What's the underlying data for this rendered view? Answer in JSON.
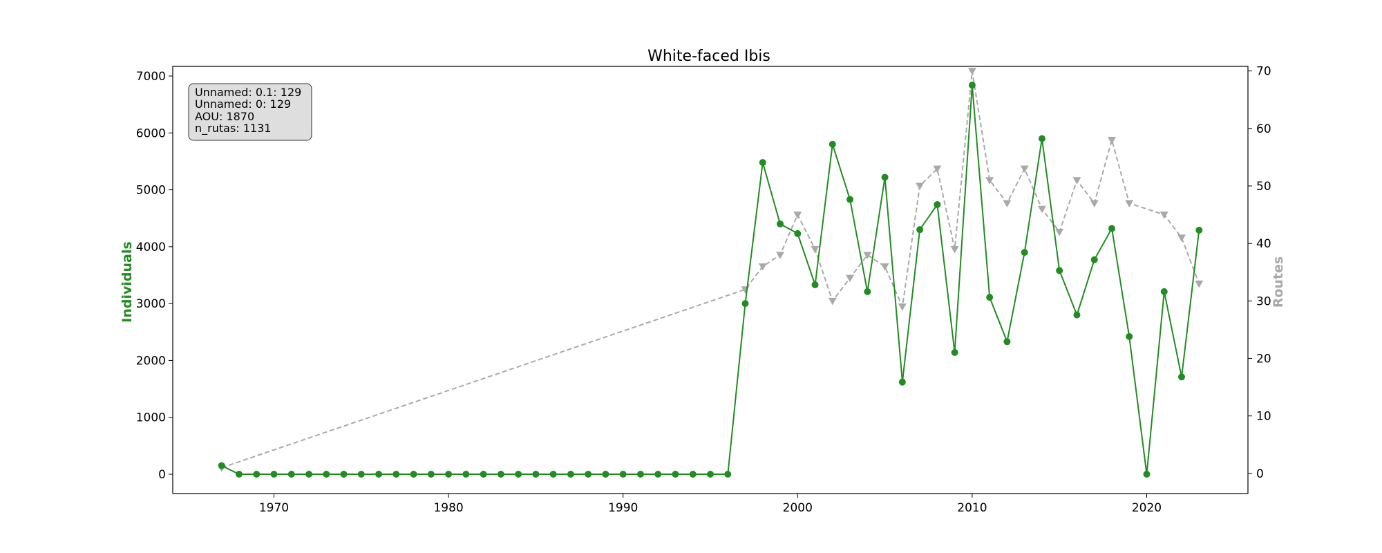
{
  "chart_data": {
    "type": "line",
    "title": "White-faced Ibis",
    "ylabel_left": "Individuals",
    "ylabel_right": "Routes",
    "xlim": [
      1964.2,
      2025.8
    ],
    "ylim_left": [
      -340,
      7170
    ],
    "ylim_right": [
      -3.5,
      70.8
    ],
    "x_ticks": [
      1970,
      1980,
      1990,
      2000,
      2010,
      2020
    ],
    "y_left_ticks": [
      0,
      1000,
      2000,
      3000,
      4000,
      5000,
      6000,
      7000
    ],
    "y_right_ticks": [
      0,
      10,
      20,
      30,
      40,
      50,
      60,
      70
    ],
    "grid": false,
    "info_box": [
      "Unnamed: 0.1: 129",
      "Unnamed: 0: 129",
      "AOU: 1870",
      "n_rutas: 1131"
    ],
    "series": [
      {
        "axis": "left",
        "color": "#228B22",
        "marker": "circle",
        "linestyle": "solid",
        "x": [
          1967,
          1968,
          1969,
          1970,
          1971,
          1972,
          1973,
          1974,
          1975,
          1976,
          1977,
          1978,
          1979,
          1980,
          1981,
          1982,
          1983,
          1984,
          1985,
          1986,
          1987,
          1988,
          1989,
          1990,
          1991,
          1992,
          1993,
          1994,
          1995,
          1996,
          1997,
          1998,
          1999,
          2000,
          2001,
          2002,
          2003,
          2004,
          2005,
          2006,
          2007,
          2008,
          2009,
          2010,
          2011,
          2012,
          2013,
          2014,
          2015,
          2016,
          2017,
          2018,
          2019,
          2020,
          2021,
          2022,
          2023
        ],
        "values": [
          150,
          0,
          0,
          0,
          0,
          0,
          0,
          0,
          0,
          0,
          0,
          0,
          0,
          0,
          0,
          0,
          0,
          0,
          0,
          0,
          0,
          0,
          0,
          0,
          0,
          0,
          0,
          0,
          0,
          0,
          3000,
          5480,
          4400,
          4230,
          3330,
          5800,
          4830,
          3210,
          5220,
          1620,
          4300,
          4740,
          2140,
          6840,
          3110,
          2330,
          3900,
          5900,
          3580,
          2800,
          3770,
          4320,
          2420,
          0,
          3210,
          1710,
          4290
        ]
      },
      {
        "axis": "right",
        "color": "#A9A9A9",
        "marker": "triangle-down",
        "linestyle": "dashed",
        "x": [
          1967,
          1997,
          1998,
          1999,
          2000,
          2001,
          2002,
          2003,
          2004,
          2005,
          2006,
          2007,
          2008,
          2009,
          2010,
          2011,
          2012,
          2013,
          2014,
          2015,
          2016,
          2017,
          2018,
          2019,
          2021,
          2022,
          2023
        ],
        "values": [
          1,
          32,
          36,
          38,
          45,
          39,
          30,
          34,
          38,
          36,
          29,
          50,
          53,
          39,
          70,
          51,
          47,
          53,
          46,
          42,
          51,
          47,
          58,
          47,
          45,
          41,
          33
        ]
      }
    ]
  }
}
